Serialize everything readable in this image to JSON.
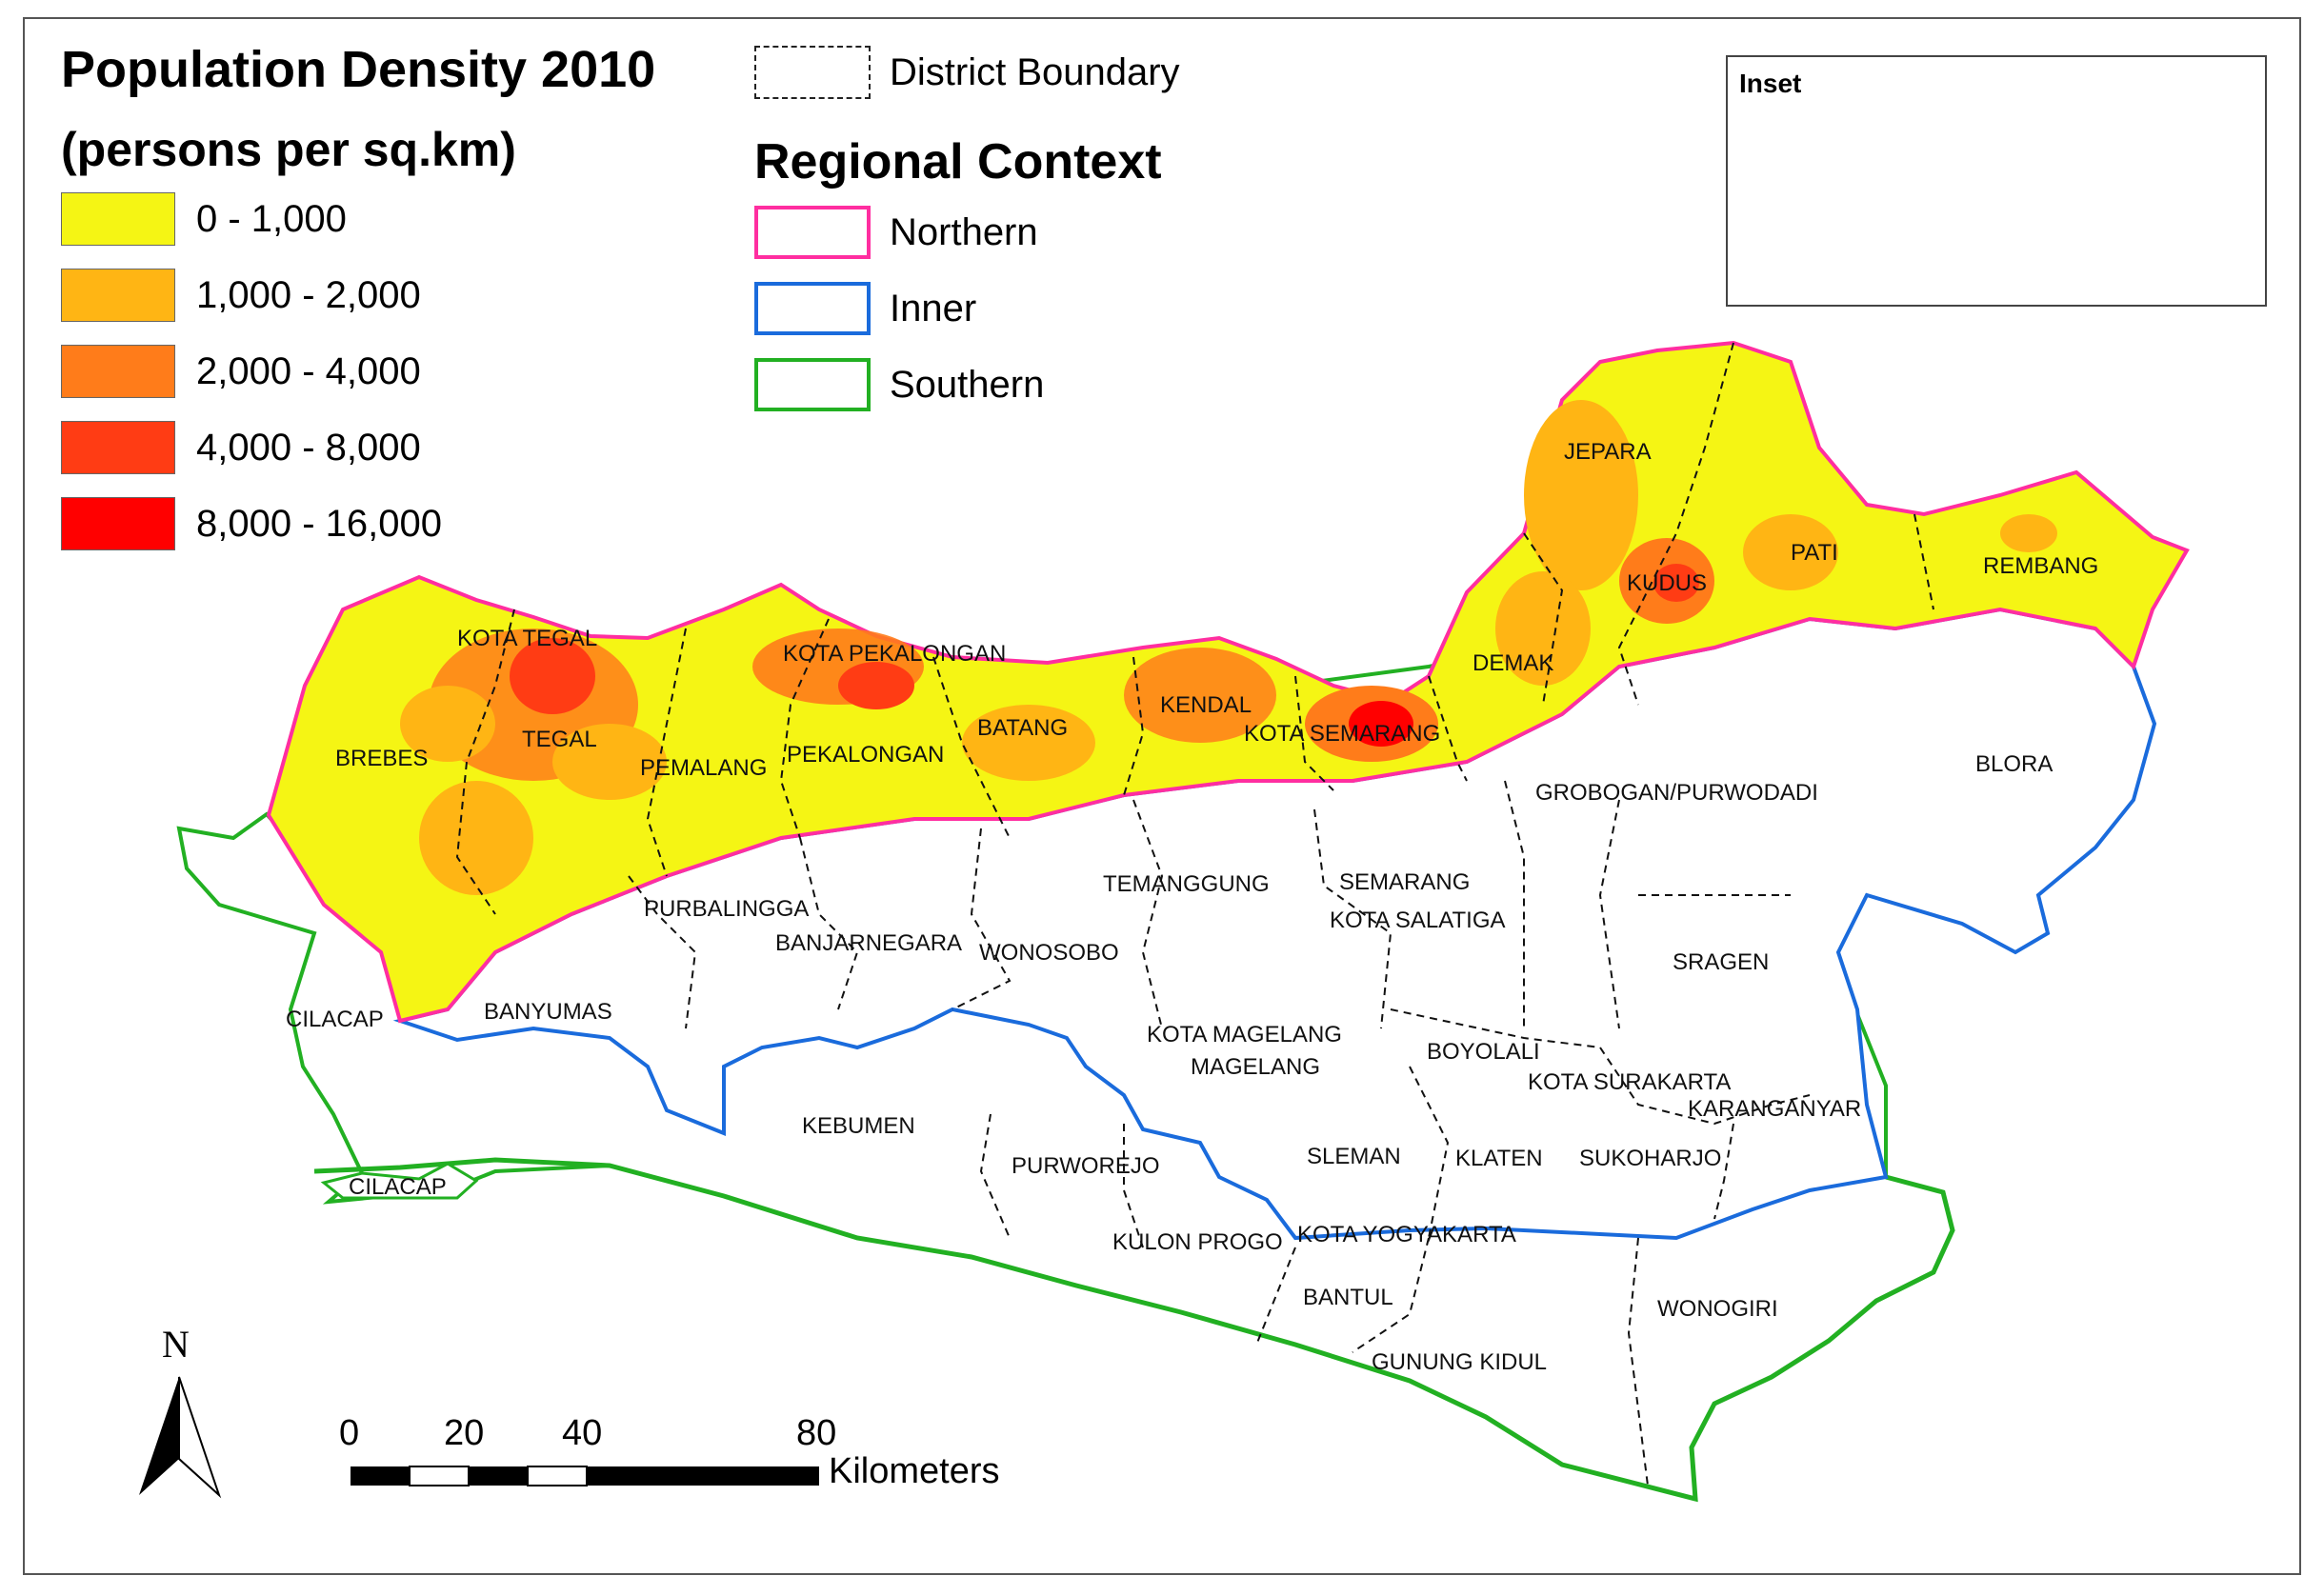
{
  "legend": {
    "title": "Population Density 2010",
    "subtitle": "(persons per sq.km)",
    "classes": [
      {
        "label": "0 - 1,000",
        "color": "#f5f514"
      },
      {
        "label": "1,000 - 2,000",
        "color": "#ffb514"
      },
      {
        "label": "2,000 - 4,000",
        "color": "#ff7c1a"
      },
      {
        "label": "4,000 - 8,000",
        "color": "#ff3c14"
      },
      {
        "label": "8,000 - 16,000",
        "color": "#ff0000"
      }
    ]
  },
  "boundary_legend": {
    "label": "District Boundary"
  },
  "regional_context": {
    "title": "Regional Context",
    "regions": [
      {
        "label": "Northern",
        "color": "#ff2ea0"
      },
      {
        "label": "Inner",
        "color": "#1a6bdc"
      },
      {
        "label": "Southern",
        "color": "#22b022"
      }
    ]
  },
  "inset": {
    "title": "Inset"
  },
  "north_arrow": {
    "label": "N"
  },
  "scale_bar": {
    "ticks": [
      "0",
      "20",
      "40",
      "80"
    ],
    "unit": "Kilometers"
  },
  "districts": {
    "kota_tegal": "KOTA TEGAL",
    "tegal": "TEGAL",
    "brebes": "BREBES",
    "kota_pekalongan": "KOTA PEKALONGAN",
    "pemalang": "PEMALANG",
    "pekalongan": "PEKALONGAN",
    "batang": "BATANG",
    "kendal": "KENDAL",
    "kota_semarang": "KOTA SEMARANG",
    "demak": "DEMAK",
    "jepara": "JEPARA",
    "kudus": "KUDUS",
    "pati": "PATI",
    "rembang": "REMBANG",
    "blora": "BLORA",
    "grobogan": "GROBOGAN/PURWODADI",
    "semarang": "SEMARANG",
    "kota_salatiga": "KOTA SALATIGA",
    "temanggung": "TEMANGGUNG",
    "purbalingga": "PURBALINGGA",
    "banjarnegara": "BANJARNEGARA",
    "wonosobo": "WONOSOBO",
    "banyumas": "BANYUMAS",
    "cilacap_1": "CILACAP",
    "cilacap_2": "CILACAP",
    "kebumen": "KEBUMEN",
    "purworejo": "PURWOREJO",
    "kota_magelang": "KOTA MAGELANG",
    "magelang": "MAGELANG",
    "boyolali": "BOYOLALI",
    "sragen": "SRAGEN",
    "kota_surakarta": "KOTA SURAKARTA",
    "karanganyar": "KARANGANYAR",
    "sleman": "SLEMAN",
    "klaten": "KLATEN",
    "sukoharjo": "SUKOHARJO",
    "kulon_progo": "KULON PROGO",
    "kota_yogyakarta": "KOTA YOGYAKARTA",
    "bantul": "BANTUL",
    "gunung_kidul": "GUNUNG KIDUL",
    "wonogiri": "WONOGIRI"
  }
}
